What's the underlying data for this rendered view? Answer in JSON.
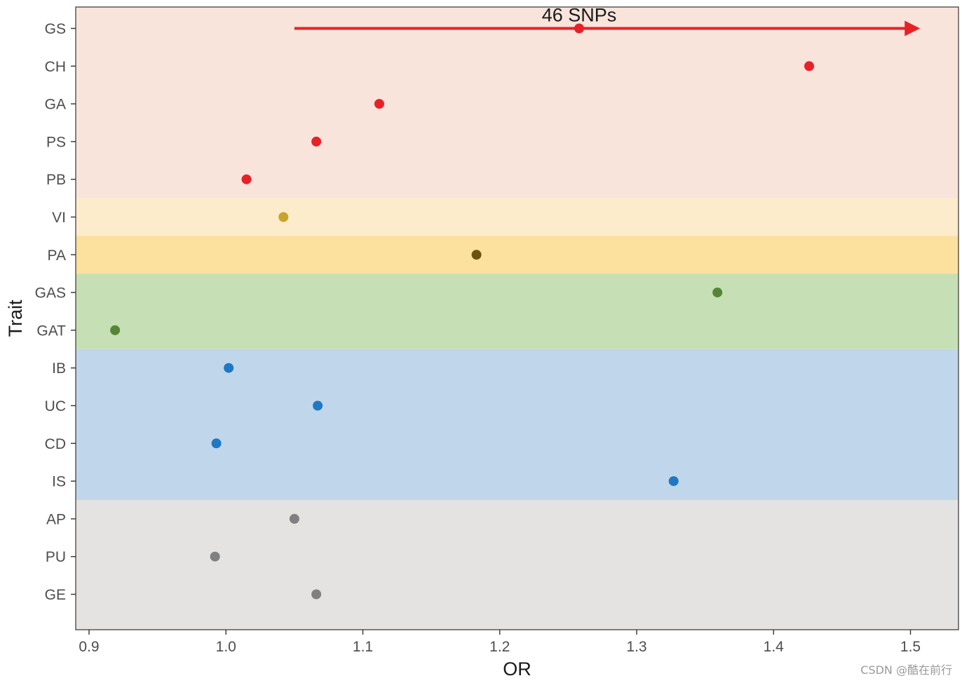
{
  "chart_data": {
    "type": "scatter",
    "title": "",
    "xlabel": "OR",
    "ylabel": "Trait",
    "xlim": [
      0.89,
      1.535
    ],
    "xticks": [
      0.9,
      1.0,
      1.1,
      1.2,
      1.3,
      1.4,
      1.5
    ],
    "xtick_labels": [
      "0.9",
      "1.0",
      "1.1",
      "1.2",
      "1.3",
      "1.4",
      "1.5"
    ],
    "categories": [
      "GS",
      "CH",
      "GA",
      "PS",
      "PB",
      "VI",
      "PA",
      "GAS",
      "GAT",
      "IB",
      "UC",
      "CD",
      "IS",
      "AP",
      "PU",
      "GE"
    ],
    "grid": false,
    "bands": [
      {
        "from": "GS",
        "to": "PB",
        "color": "#f9e4dc"
      },
      {
        "from": "VI",
        "to": "VI",
        "color": "#fdeccb"
      },
      {
        "from": "PA",
        "to": "PA",
        "color": "#fbe09e"
      },
      {
        "from": "GAS",
        "to": "GAT",
        "color": "#c6dfb4"
      },
      {
        "from": "IB",
        "to": "IS",
        "color": "#c0d6eb"
      },
      {
        "from": "AP",
        "to": "GE",
        "color": "#e4e3e2"
      }
    ],
    "points": [
      {
        "trait": "GS",
        "or": 1.258,
        "color": "#e82127"
      },
      {
        "trait": "CH",
        "or": 1.426,
        "color": "#e82127"
      },
      {
        "trait": "GA",
        "or": 1.112,
        "color": "#e82127"
      },
      {
        "trait": "PS",
        "or": 1.066,
        "color": "#e82127"
      },
      {
        "trait": "PB",
        "or": 1.015,
        "color": "#e82127"
      },
      {
        "trait": "VI",
        "or": 1.042,
        "color": "#c9a42a"
      },
      {
        "trait": "PA",
        "or": 1.183,
        "color": "#6b5410"
      },
      {
        "trait": "GAS",
        "or": 1.359,
        "color": "#548636"
      },
      {
        "trait": "GAT",
        "or": 0.919,
        "color": "#548636"
      },
      {
        "trait": "IB",
        "or": 1.002,
        "color": "#1f78c1"
      },
      {
        "trait": "UC",
        "or": 1.067,
        "color": "#1f78c1"
      },
      {
        "trait": "CD",
        "or": 0.993,
        "color": "#1f78c1"
      },
      {
        "trait": "IS",
        "or": 1.327,
        "color": "#1f78c1"
      },
      {
        "trait": "AP",
        "or": 1.05,
        "color": "#808080"
      },
      {
        "trait": "PU",
        "or": 0.992,
        "color": "#808080"
      },
      {
        "trait": "GE",
        "or": 1.066,
        "color": "#808080"
      }
    ],
    "annotation": {
      "text": "46 SNPs",
      "trait": "GS",
      "x_from": 1.05,
      "x_to": 1.506,
      "label_x": 1.258,
      "color": "#e82127"
    }
  },
  "watermark": "CSDN @酷在前行"
}
